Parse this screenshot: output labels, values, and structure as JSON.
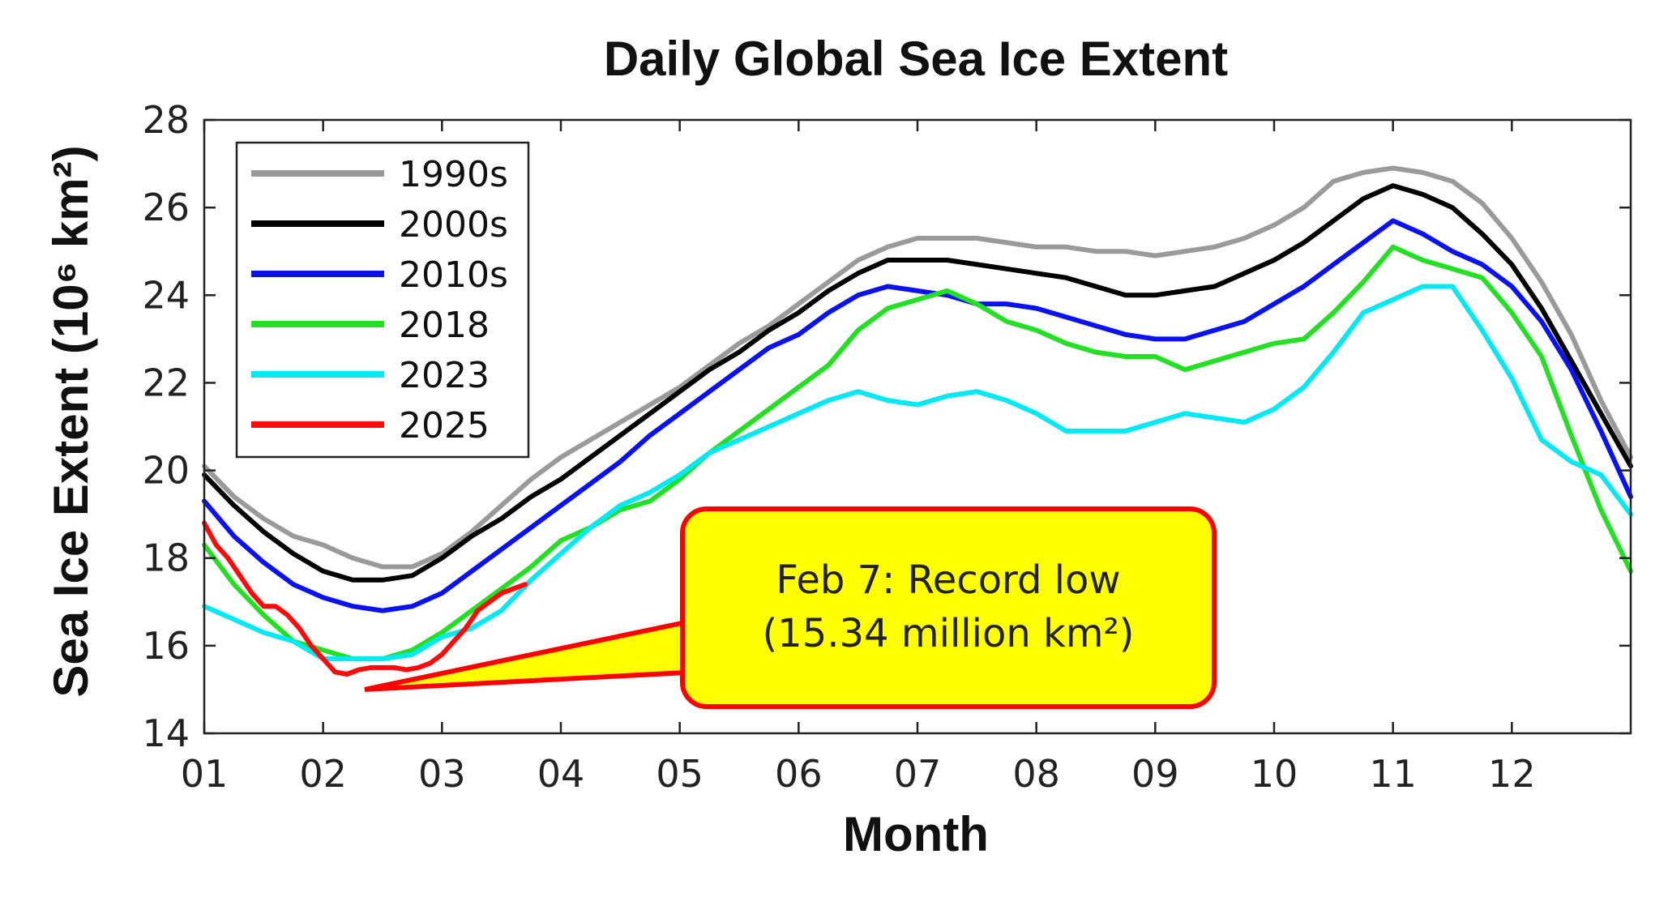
{
  "chart_data": {
    "type": "line",
    "title": "Daily Global Sea Ice Extent",
    "xlabel": "Month",
    "ylabel": "Sea Ice Extent (10⁶ km²)",
    "x_ticks": [
      "01",
      "02",
      "03",
      "04",
      "05",
      "06",
      "07",
      "08",
      "09",
      "10",
      "11",
      "12"
    ],
    "xlim": [
      1,
      13
    ],
    "ylim": [
      14,
      28
    ],
    "y_ticks": [
      14,
      16,
      18,
      20,
      22,
      24,
      26,
      28
    ],
    "grid": false,
    "legend_position": "top-left",
    "series": [
      {
        "name": "1990s",
        "color": "#9a9a9a",
        "x": [
          1,
          1.25,
          1.5,
          1.75,
          2,
          2.25,
          2.5,
          2.75,
          3,
          3.25,
          3.5,
          3.75,
          4,
          4.25,
          4.5,
          4.75,
          5,
          5.25,
          5.5,
          5.75,
          6,
          6.25,
          6.5,
          6.75,
          7,
          7.25,
          7.5,
          7.75,
          8,
          8.25,
          8.5,
          8.75,
          9,
          9.25,
          9.5,
          9.75,
          10,
          10.25,
          10.5,
          10.75,
          11,
          11.25,
          11.5,
          11.75,
          12,
          12.25,
          12.5,
          12.75,
          13
        ],
        "y": [
          20.1,
          19.4,
          18.9,
          18.5,
          18.3,
          18.0,
          17.8,
          17.8,
          18.1,
          18.6,
          19.2,
          19.8,
          20.3,
          20.7,
          21.1,
          21.5,
          21.9,
          22.4,
          22.9,
          23.3,
          23.8,
          24.3,
          24.8,
          25.1,
          25.3,
          25.3,
          25.3,
          25.2,
          25.1,
          25.1,
          25.0,
          25.0,
          24.9,
          25.0,
          25.1,
          25.3,
          25.6,
          26.0,
          26.6,
          26.8,
          26.9,
          26.8,
          26.6,
          26.1,
          25.3,
          24.3,
          23.1,
          21.6,
          20.3
        ]
      },
      {
        "name": "2000s",
        "color": "#000000",
        "x": [
          1,
          1.25,
          1.5,
          1.75,
          2,
          2.25,
          2.5,
          2.75,
          3,
          3.25,
          3.5,
          3.75,
          4,
          4.25,
          4.5,
          4.75,
          5,
          5.25,
          5.5,
          5.75,
          6,
          6.25,
          6.5,
          6.75,
          7,
          7.25,
          7.5,
          7.75,
          8,
          8.25,
          8.5,
          8.75,
          9,
          9.25,
          9.5,
          9.75,
          10,
          10.25,
          10.5,
          10.75,
          11,
          11.25,
          11.5,
          11.75,
          12,
          12.25,
          12.5,
          12.75,
          13
        ],
        "y": [
          19.9,
          19.2,
          18.6,
          18.1,
          17.7,
          17.5,
          17.5,
          17.6,
          18.0,
          18.5,
          18.9,
          19.4,
          19.8,
          20.3,
          20.8,
          21.3,
          21.8,
          22.3,
          22.7,
          23.2,
          23.6,
          24.1,
          24.5,
          24.8,
          24.8,
          24.8,
          24.7,
          24.6,
          24.5,
          24.4,
          24.2,
          24.0,
          24.0,
          24.1,
          24.2,
          24.5,
          24.8,
          25.2,
          25.7,
          26.2,
          26.5,
          26.3,
          26.0,
          25.4,
          24.7,
          23.7,
          22.5,
          21.3,
          20.1
        ]
      },
      {
        "name": "2010s",
        "color": "#0a12f0",
        "x": [
          1,
          1.25,
          1.5,
          1.75,
          2,
          2.25,
          2.5,
          2.75,
          3,
          3.25,
          3.5,
          3.75,
          4,
          4.25,
          4.5,
          4.75,
          5,
          5.25,
          5.5,
          5.75,
          6,
          6.25,
          6.5,
          6.75,
          7,
          7.25,
          7.5,
          7.75,
          8,
          8.25,
          8.5,
          8.75,
          9,
          9.25,
          9.5,
          9.75,
          10,
          10.25,
          10.5,
          10.75,
          11,
          11.25,
          11.5,
          11.75,
          12,
          12.25,
          12.5,
          12.75,
          13
        ],
        "y": [
          19.3,
          18.5,
          17.9,
          17.4,
          17.1,
          16.9,
          16.8,
          16.9,
          17.2,
          17.7,
          18.2,
          18.7,
          19.2,
          19.7,
          20.2,
          20.8,
          21.3,
          21.8,
          22.3,
          22.8,
          23.1,
          23.6,
          24.0,
          24.2,
          24.1,
          24.0,
          23.8,
          23.8,
          23.7,
          23.5,
          23.3,
          23.1,
          23.0,
          23.0,
          23.2,
          23.4,
          23.8,
          24.2,
          24.7,
          25.2,
          25.7,
          25.4,
          25.0,
          24.7,
          24.2,
          23.4,
          22.3,
          20.9,
          19.4
        ]
      },
      {
        "name": "2018",
        "color": "#22e022",
        "x": [
          1,
          1.25,
          1.5,
          1.75,
          2,
          2.25,
          2.5,
          2.75,
          3,
          3.25,
          3.5,
          3.75,
          4,
          4.25,
          4.5,
          4.75,
          5,
          5.25,
          5.5,
          5.75,
          6,
          6.25,
          6.5,
          6.75,
          7,
          7.25,
          7.5,
          7.75,
          8,
          8.25,
          8.5,
          8.75,
          9,
          9.25,
          9.5,
          9.75,
          10,
          10.25,
          10.5,
          10.75,
          11,
          11.25,
          11.5,
          11.75,
          12,
          12.25,
          12.5,
          12.75,
          13
        ],
        "y": [
          18.3,
          17.4,
          16.7,
          16.1,
          15.9,
          15.7,
          15.7,
          15.9,
          16.3,
          16.8,
          17.3,
          17.8,
          18.4,
          18.7,
          19.1,
          19.3,
          19.8,
          20.4,
          20.9,
          21.4,
          21.9,
          22.4,
          23.2,
          23.7,
          23.9,
          24.1,
          23.8,
          23.4,
          23.2,
          22.9,
          22.7,
          22.6,
          22.6,
          22.3,
          22.5,
          22.7,
          22.9,
          23.0,
          23.6,
          24.3,
          25.1,
          24.8,
          24.6,
          24.4,
          23.6,
          22.6,
          20.8,
          19.1,
          17.7
        ]
      },
      {
        "name": "2023",
        "color": "#00eaf5",
        "x": [
          1,
          1.25,
          1.5,
          1.75,
          2,
          2.25,
          2.5,
          2.75,
          3,
          3.25,
          3.5,
          3.75,
          4,
          4.25,
          4.5,
          4.75,
          5,
          5.25,
          5.5,
          5.75,
          6,
          6.25,
          6.5,
          6.75,
          7,
          7.25,
          7.5,
          7.75,
          8,
          8.25,
          8.5,
          8.75,
          9,
          9.25,
          9.5,
          9.75,
          10,
          10.25,
          10.5,
          10.75,
          11,
          11.25,
          11.5,
          11.75,
          12,
          12.25,
          12.5,
          12.75,
          13
        ],
        "y": [
          16.9,
          16.6,
          16.3,
          16.1,
          15.7,
          15.7,
          15.7,
          15.8,
          16.2,
          16.4,
          16.8,
          17.5,
          18.1,
          18.7,
          19.2,
          19.5,
          19.9,
          20.4,
          20.7,
          21.0,
          21.3,
          21.6,
          21.8,
          21.6,
          21.5,
          21.7,
          21.8,
          21.6,
          21.3,
          20.9,
          20.9,
          20.9,
          21.1,
          21.3,
          21.2,
          21.1,
          21.4,
          21.9,
          22.7,
          23.6,
          23.9,
          24.2,
          24.2,
          23.2,
          22.1,
          20.7,
          20.2,
          19.9,
          19.0
        ]
      },
      {
        "name": "2025",
        "color": "#ff0a0a",
        "x": [
          1,
          1.1,
          1.2,
          1.3,
          1.4,
          1.5,
          1.6,
          1.7,
          1.8,
          1.9,
          2.0,
          2.1,
          2.2,
          2.3,
          2.4,
          2.5,
          2.6,
          2.7,
          2.8,
          2.9,
          3.0,
          3.1,
          3.2,
          3.3,
          3.4,
          3.5,
          3.6,
          3.7
        ],
        "y": [
          18.8,
          18.3,
          18.0,
          17.6,
          17.2,
          16.9,
          16.9,
          16.7,
          16.4,
          16.0,
          15.7,
          15.4,
          15.35,
          15.45,
          15.5,
          15.5,
          15.5,
          15.45,
          15.5,
          15.6,
          15.8,
          16.1,
          16.4,
          16.8,
          17.0,
          17.2,
          17.3,
          17.4
        ]
      }
    ],
    "annotations": [
      {
        "lines": [
          "Feb 7: Record low",
          "(15.34 million km²)"
        ],
        "points_to": {
          "x": 2.35,
          "y": 15.0
        },
        "fill": "#ffff00",
        "border": "#ff0000"
      }
    ]
  }
}
